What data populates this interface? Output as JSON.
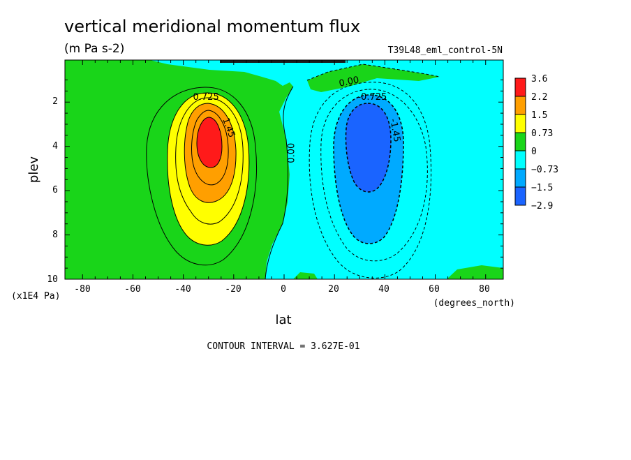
{
  "chart_data": {
    "type": "heatmap",
    "title": "vertical meridional momentum flux",
    "units": "(m Pa s-2)",
    "run_label": "T39L48_eml_control-5N",
    "xlabel": "lat",
    "xunits": "(degrees_north)",
    "ylabel": "plev",
    "yunits": "(x1E4 Pa)",
    "xlim": [
      -87,
      87
    ],
    "ylim": [
      10,
      0.1
    ],
    "xticks": [
      "-80",
      "-60",
      "-40",
      "-20",
      "0",
      "20",
      "40",
      "60",
      "80"
    ],
    "yticks": [
      "2",
      "4",
      "6",
      "8",
      "10"
    ],
    "contour_interval_text": "CONTOUR INTERVAL = 3.627E-01",
    "colorbar": {
      "labels": [
        "3.6",
        "2.2",
        "1.5",
        "0.73",
        "0",
        "−0.73",
        "−1.5",
        "−2.9"
      ],
      "colors": [
        "#ff1a1a",
        "#ff9f00",
        "#ffff00",
        "#19d519",
        "#00ffff",
        "#00aaff",
        "#1a64ff"
      ]
    },
    "contour_labels": [
      {
        "text": "0.725",
        "lat": -31,
        "plev": 1.9
      },
      {
        "text": "1.45",
        "lat": -23,
        "plev": 3.2,
        "rotate": 70
      },
      {
        "text": "0.00",
        "lat": 4,
        "plev": 4.3,
        "rotate": -90
      },
      {
        "text": "0.00",
        "lat": 26,
        "plev": 1.2,
        "rotate": -12
      },
      {
        "text": "-0.725",
        "lat": 35,
        "plev": 1.9
      },
      {
        "text": "-1.45",
        "lat": 43,
        "plev": 3.3,
        "rotate": 80
      }
    ],
    "features": [
      {
        "name": "positive maximum",
        "lat": -29,
        "plev": 3.5,
        "value_band": "3.6"
      },
      {
        "name": "negative minimum",
        "lat": 36,
        "plev": 4.0,
        "value_band": "-2.9"
      }
    ]
  }
}
